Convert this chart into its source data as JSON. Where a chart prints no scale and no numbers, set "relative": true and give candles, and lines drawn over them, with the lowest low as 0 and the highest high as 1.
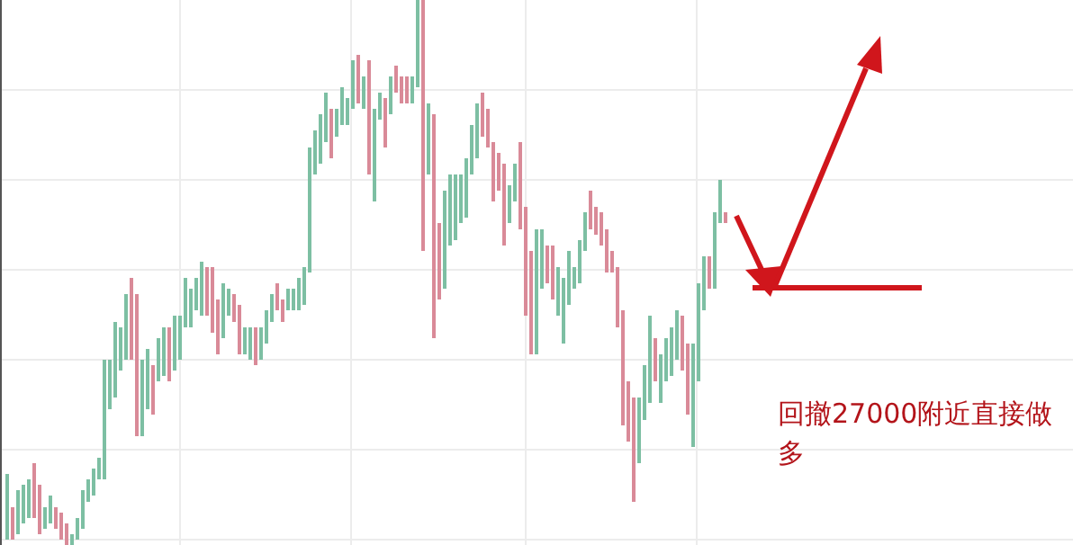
{
  "chart_data": {
    "type": "candlestick",
    "relative": true,
    "grid": true,
    "categories": [
      null,
      null,
      null,
      null,
      null,
      null,
      null,
      null,
      null,
      null,
      null,
      null,
      null,
      null,
      null,
      null,
      null,
      null,
      null,
      null,
      null,
      null,
      null,
      null,
      null,
      null,
      null,
      null,
      null,
      null,
      null,
      null,
      null,
      null,
      null,
      null,
      null,
      null,
      null,
      null,
      null,
      null,
      null,
      null,
      null,
      null,
      null,
      null,
      null,
      null,
      null,
      null,
      null,
      null,
      null,
      null,
      null,
      null,
      null,
      null,
      null,
      null,
      null,
      null,
      null,
      null,
      null,
      null,
      null,
      null,
      null,
      null,
      null,
      null,
      null,
      null,
      null,
      null,
      null,
      null,
      null,
      null,
      null,
      null,
      null,
      null,
      null,
      null,
      null,
      null,
      null,
      null,
      null,
      null,
      null,
      null,
      null,
      null,
      null,
      null,
      null,
      null,
      null,
      null,
      null,
      null,
      null,
      null,
      null,
      null,
      null,
      null,
      null,
      null,
      null,
      null,
      null,
      null,
      null,
      null,
      null,
      null,
      null,
      null,
      null,
      null,
      null,
      null,
      null,
      null,
      null,
      null,
      null,
      null
    ],
    "ohlc": [
      [
        0.01,
        0.13,
        0.01,
        0.13
      ],
      [
        0.07,
        0.07,
        0.01,
        0.01
      ],
      [
        0.02,
        0.1,
        0.02,
        0.1
      ],
      [
        0.04,
        0.11,
        0.04,
        0.11
      ],
      [
        0.05,
        0.12,
        0.05,
        0.12
      ],
      [
        0.15,
        0.15,
        0.05,
        0.05
      ],
      [
        0.11,
        0.11,
        0.02,
        0.02
      ],
      [
        0.03,
        0.07,
        0.03,
        0.07
      ],
      [
        0.04,
        0.09,
        0.04,
        0.09
      ],
      [
        0.07,
        0.07,
        0.03,
        0.03
      ],
      [
        0.06,
        0.06,
        0.01,
        0.01
      ],
      [
        0.04,
        0.04,
        0,
        0
      ],
      [
        0,
        0.02,
        0,
        0.02
      ],
      [
        0.01,
        0.05,
        0.01,
        0.05
      ],
      [
        0.03,
        0.1,
        0.03,
        0.1
      ],
      [
        0.08,
        0.12,
        0.08,
        0.12
      ],
      [
        0.09,
        0.14,
        0.09,
        0.14
      ],
      [
        0.12,
        0.16,
        0.12,
        0.16
      ],
      [
        0.12,
        0.34,
        0.12,
        0.34
      ],
      [
        0.25,
        0.34,
        0.25,
        0.34
      ],
      [
        0.27,
        0.41,
        0.27,
        0.41
      ],
      [
        0.32,
        0.4,
        0.32,
        0.4
      ],
      [
        0.34,
        0.46,
        0.34,
        0.46
      ],
      [
        0.49,
        0.49,
        0.34,
        0.34
      ],
      [
        0.46,
        0.46,
        0.2,
        0.2
      ],
      [
        0.2,
        0.34,
        0.2,
        0.34
      ],
      [
        0.25,
        0.36,
        0.25,
        0.36
      ],
      [
        0.33,
        0.33,
        0.24,
        0.24
      ],
      [
        0.3,
        0.38,
        0.3,
        0.38
      ],
      [
        0.31,
        0.4,
        0.31,
        0.4
      ],
      [
        0.4,
        0.4,
        0.3,
        0.3
      ],
      [
        0.32,
        0.42,
        0.32,
        0.42
      ],
      [
        0.34,
        0.42,
        0.34,
        0.42
      ],
      [
        0.4,
        0.49,
        0.4,
        0.49
      ],
      [
        0.4,
        0.47,
        0.4,
        0.47
      ],
      [
        0.43,
        0.49,
        0.43,
        0.49
      ],
      [
        0.42,
        0.52,
        0.42,
        0.52
      ],
      [
        0.51,
        0.51,
        0.42,
        0.42
      ],
      [
        0.51,
        0.51,
        0.39,
        0.39
      ],
      [
        0.45,
        0.45,
        0.35,
        0.35
      ],
      [
        0.38,
        0.48,
        0.38,
        0.48
      ],
      [
        0.42,
        0.47,
        0.42,
        0.47
      ],
      [
        0.46,
        0.46,
        0.41,
        0.41
      ],
      [
        0.44,
        0.44,
        0.35,
        0.35
      ],
      [
        0.35,
        0.4,
        0.35,
        0.4
      ],
      [
        0.34,
        0.4,
        0.34,
        0.4
      ],
      [
        0.4,
        0.4,
        0.33,
        0.33
      ],
      [
        0.34,
        0.4,
        0.34,
        0.4
      ],
      [
        0.37,
        0.43,
        0.37,
        0.43
      ],
      [
        0.41,
        0.46,
        0.41,
        0.46
      ],
      [
        0.48,
        0.48,
        0.43,
        0.43
      ],
      [
        0.45,
        0.45,
        0.41,
        0.41
      ],
      [
        0.43,
        0.47,
        0.43,
        0.47
      ],
      [
        0.43,
        0.47,
        0.43,
        0.47
      ],
      [
        0.43,
        0.49,
        0.43,
        0.49
      ],
      [
        0.44,
        0.51,
        0.44,
        0.51
      ],
      [
        0.5,
        0.73,
        0.5,
        0.73
      ],
      [
        0.68,
        0.76,
        0.68,
        0.76
      ],
      [
        0.7,
        0.79,
        0.7,
        0.79
      ],
      [
        0.74,
        0.83,
        0.74,
        0.83
      ],
      [
        0.8,
        0.8,
        0.71,
        0.71
      ],
      [
        0.75,
        0.8,
        0.75,
        0.8
      ],
      [
        0.77,
        0.84,
        0.77,
        0.84
      ],
      [
        0.77,
        0.82,
        0.77,
        0.82
      ],
      [
        0.8,
        0.89,
        0.8,
        0.89
      ],
      [
        0.9,
        0.9,
        0.81,
        0.81
      ],
      [
        0.8,
        0.86,
        0.8,
        0.86
      ],
      [
        0.89,
        0.89,
        0.68,
        0.68
      ],
      [
        0.63,
        0.8,
        0.63,
        0.8
      ],
      [
        0.78,
        0.83,
        0.78,
        0.83
      ],
      [
        0.82,
        0.82,
        0.73,
        0.73
      ],
      [
        0.79,
        0.86,
        0.79,
        0.86
      ],
      [
        0.88,
        0.88,
        0.83,
        0.83
      ],
      [
        0.86,
        0.86,
        0.81,
        0.81
      ],
      [
        0.86,
        0.86,
        0.81,
        0.81
      ],
      [
        0.81,
        0.86,
        0.81,
        0.86
      ],
      [
        0.84,
        1,
        0.84,
        1
      ],
      [
        1,
        1,
        0.54,
        0.54
      ],
      [
        0.68,
        0.81,
        0.68,
        0.81
      ],
      [
        0.79,
        0.79,
        0.38,
        0.38
      ],
      [
        0.59,
        0.59,
        0.45,
        0.45
      ],
      [
        0.47,
        0.65,
        0.47,
        0.65
      ],
      [
        0.55,
        0.68,
        0.55,
        0.68
      ],
      [
        0.56,
        0.68,
        0.56,
        0.68
      ],
      [
        0.59,
        0.68,
        0.59,
        0.68
      ],
      [
        0.6,
        0.71,
        0.6,
        0.71
      ],
      [
        0.68,
        0.77,
        0.68,
        0.77
      ],
      [
        0.71,
        0.81,
        0.71,
        0.81
      ],
      [
        0.83,
        0.83,
        0.75,
        0.75
      ],
      [
        0.8,
        0.8,
        0.73,
        0.73
      ],
      [
        0.74,
        0.74,
        0.63,
        0.63
      ],
      [
        0.72,
        0.72,
        0.65,
        0.65
      ],
      [
        0.7,
        0.7,
        0.55,
        0.55
      ],
      [
        0.59,
        0.66,
        0.59,
        0.66
      ],
      [
        0.63,
        0.7,
        0.63,
        0.7
      ],
      [
        0.74,
        0.74,
        0.58,
        0.58
      ],
      [
        0.62,
        0.62,
        0.42,
        0.42
      ],
      [
        0.54,
        0.54,
        0.35,
        0.35
      ],
      [
        0.35,
        0.58,
        0.35,
        0.58
      ],
      [
        0.47,
        0.58,
        0.47,
        0.58
      ],
      [
        0.55,
        0.55,
        0.48,
        0.48
      ],
      [
        0.55,
        0.55,
        0.45,
        0.45
      ],
      [
        0.42,
        0.51,
        0.42,
        0.51
      ],
      [
        0.37,
        0.49,
        0.37,
        0.49
      ],
      [
        0.44,
        0.54,
        0.44,
        0.54
      ],
      [
        0.47,
        0.51,
        0.47,
        0.51
      ],
      [
        0.48,
        0.56,
        0.48,
        0.56
      ],
      [
        0.54,
        0.61,
        0.54,
        0.61
      ],
      [
        0.65,
        0.65,
        0.58,
        0.58
      ],
      [
        0.62,
        0.62,
        0.57,
        0.57
      ],
      [
        0.61,
        0.61,
        0.55,
        0.55
      ],
      [
        0.58,
        0.58,
        0.5,
        0.5
      ],
      [
        0.54,
        0.54,
        0.5,
        0.5
      ],
      [
        0.51,
        0.51,
        0.4,
        0.4
      ],
      [
        0.43,
        0.43,
        0.22,
        0.22
      ],
      [
        0.3,
        0.3,
        0.19,
        0.19
      ],
      [
        0.27,
        0.27,
        0.08,
        0.08
      ],
      [
        0.15,
        0.27,
        0.15,
        0.27
      ],
      [
        0.23,
        0.33,
        0.23,
        0.33
      ],
      [
        0.26,
        0.42,
        0.26,
        0.42
      ],
      [
        0.38,
        0.38,
        0.3,
        0.3
      ],
      [
        0.26,
        0.35,
        0.26,
        0.35
      ],
      [
        0.3,
        0.38,
        0.3,
        0.38
      ],
      [
        0.31,
        0.4,
        0.31,
        0.4
      ],
      [
        0.34,
        0.43,
        0.34,
        0.43
      ],
      [
        0.42,
        0.42,
        0.32,
        0.32
      ],
      [
        0.37,
        0.37,
        0.24,
        0.24
      ],
      [
        0.18,
        0.37,
        0.18,
        0.37
      ],
      [
        0.3,
        0.48,
        0.3,
        0.48
      ],
      [
        0.43,
        0.53,
        0.43,
        0.53
      ],
      [
        0.53,
        0.53,
        0.47,
        0.47
      ],
      [
        0.47,
        0.61,
        0.47,
        0.61
      ],
      [
        0.59,
        0.67,
        0.59,
        0.67
      ],
      [
        0.61,
        0.61,
        0.59,
        0.59
      ]
    ],
    "colors": [
      "#7dbfa3",
      "#d98a98",
      "#7dbfa3",
      "#7dbfa3",
      "#7dbfa3",
      "#d98a98",
      "#d98a98",
      "#7dbfa3",
      "#7dbfa3",
      "#d98a98",
      "#d98a98",
      "#d98a98",
      "#7dbfa3",
      "#7dbfa3",
      "#7dbfa3",
      "#7dbfa3",
      "#7dbfa3",
      "#7dbfa3",
      "#7dbfa3",
      "#7dbfa3",
      "#7dbfa3",
      "#7dbfa3",
      "#7dbfa3",
      "#d98a98",
      "#d98a98",
      "#7dbfa3",
      "#7dbfa3",
      "#d98a98",
      "#7dbfa3",
      "#7dbfa3",
      "#d98a98",
      "#7dbfa3",
      "#7dbfa3",
      "#7dbfa3",
      "#7dbfa3",
      "#7dbfa3",
      "#7dbfa3",
      "#d98a98",
      "#d98a98",
      "#d98a98",
      "#7dbfa3",
      "#7dbfa3",
      "#d98a98",
      "#d98a98",
      "#7dbfa3",
      "#7dbfa3",
      "#d98a98",
      "#7dbfa3",
      "#7dbfa3",
      "#7dbfa3",
      "#d98a98",
      "#d98a98",
      "#7dbfa3",
      "#7dbfa3",
      "#7dbfa3",
      "#7dbfa3",
      "#7dbfa3",
      "#7dbfa3",
      "#7dbfa3",
      "#7dbfa3",
      "#d98a98",
      "#7dbfa3",
      "#7dbfa3",
      "#7dbfa3",
      "#7dbfa3",
      "#d98a98",
      "#7dbfa3",
      "#d98a98",
      "#7dbfa3",
      "#7dbfa3",
      "#d98a98",
      "#7dbfa3",
      "#d98a98",
      "#d98a98",
      "#d98a98",
      "#7dbfa3",
      "#7dbfa3",
      "#d98a98",
      "#7dbfa3",
      "#d98a98",
      "#d98a98",
      "#7dbfa3",
      "#7dbfa3",
      "#7dbfa3",
      "#7dbfa3",
      "#7dbfa3",
      "#7dbfa3",
      "#7dbfa3",
      "#d98a98",
      "#d98a98",
      "#d98a98",
      "#d98a98",
      "#d98a98",
      "#7dbfa3",
      "#7dbfa3",
      "#d98a98",
      "#d98a98",
      "#d98a98",
      "#7dbfa3",
      "#7dbfa3",
      "#d98a98",
      "#d98a98",
      "#7dbfa3",
      "#7dbfa3",
      "#7dbfa3",
      "#7dbfa3",
      "#7dbfa3",
      "#7dbfa3",
      "#d98a98",
      "#d98a98",
      "#d98a98",
      "#d98a98",
      "#d98a98",
      "#d98a98",
      "#d98a98",
      "#d98a98",
      "#d98a98",
      "#7dbfa3",
      "#7dbfa3",
      "#7dbfa3",
      "#d98a98",
      "#7dbfa3",
      "#7dbfa3",
      "#7dbfa3",
      "#7dbfa3",
      "#d98a98",
      "#d98a98",
      "#7dbfa3",
      "#7dbfa3",
      "#7dbfa3",
      "#d98a98",
      "#7dbfa3",
      "#7dbfa3",
      "#d98a98"
    ],
    "annotations": [
      "回撤27000附近直接做多"
    ]
  }
}
